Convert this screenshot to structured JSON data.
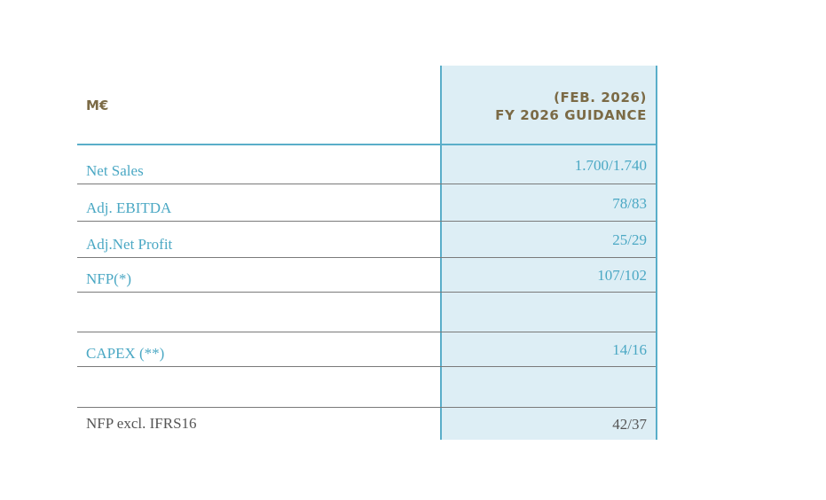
{
  "table": {
    "header_label": "M€",
    "column_header_line1": "(FEB. 2026)",
    "column_header_line2": "FY 2026 GUIDANCE",
    "rows": [
      {
        "label": "Net Sales",
        "value": "1.700/1.740"
      },
      {
        "label": "Adj. EBITDA",
        "value": "78/83"
      },
      {
        "label": "Adj.Net Profit",
        "value": "25/29"
      },
      {
        "label": "NFP(*)",
        "value": "107/102"
      },
      {
        "label": "",
        "value": ""
      },
      {
        "label": "CAPEX (**)",
        "value": "14/16"
      },
      {
        "label": "",
        "value": ""
      },
      {
        "label": "NFP excl. IFRS16",
        "value": "42/37"
      }
    ]
  },
  "colors": {
    "accent": "#5aaec9",
    "highlight": "#ddeef5",
    "header_text": "#7b6a45",
    "row_text": "#4ba8c4",
    "last_row_text": "#555555"
  }
}
